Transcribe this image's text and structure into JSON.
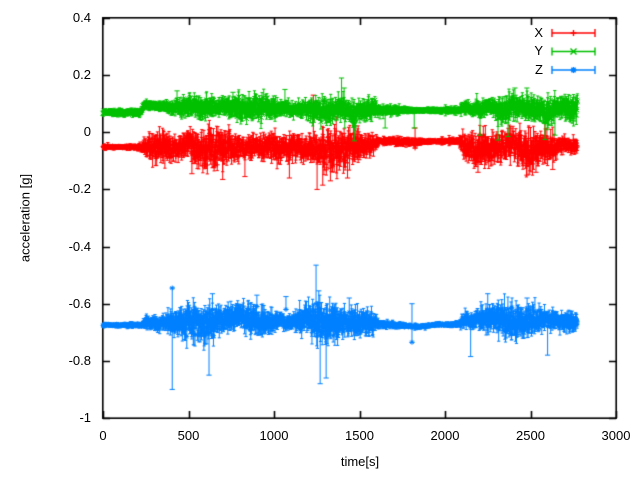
{
  "chart_data": {
    "type": "scatter",
    "style": "yerrorbars",
    "title": "",
    "xlabel": "time[s]",
    "ylabel": "acceleration [g]",
    "xlim": [
      0,
      3000
    ],
    "ylim": [
      -1,
      0.4
    ],
    "xticks": [
      0,
      500,
      1000,
      1500,
      2000,
      2500,
      3000
    ],
    "yticks": [
      0.4,
      0.2,
      0,
      -0.2,
      -0.4,
      -0.6,
      -0.8,
      -1
    ],
    "xtick_labels": [
      "0",
      "500",
      "1000",
      "1500",
      "2000",
      "2500",
      "3000"
    ],
    "ytick_labels": [
      "0.4",
      "0.2",
      "0",
      "-0.2",
      "-0.4",
      "-0.6",
      "-0.8",
      "-1"
    ],
    "grid": false,
    "legend_position": "inside-top-right",
    "background_color": "#ffffff",
    "axis_color": "#000000",
    "t_start": 0,
    "t_end": 2775,
    "sample_step_s": 2,
    "series": [
      {
        "name": "X",
        "color": "#ff0000",
        "marker": "plus",
        "envelope": [
          [
            0,
            -0.052,
            0.006,
            0.01
          ],
          [
            215,
            -0.052,
            0.006,
            0.01
          ],
          [
            245,
            -0.045,
            0.018,
            0.02
          ],
          [
            300,
            -0.05,
            0.026,
            0.026
          ],
          [
            420,
            -0.056,
            0.03,
            0.028
          ],
          [
            500,
            -0.046,
            0.03,
            0.028
          ],
          [
            600,
            -0.06,
            0.034,
            0.03
          ],
          [
            700,
            -0.052,
            0.034,
            0.03
          ],
          [
            800,
            -0.062,
            0.036,
            0.03
          ],
          [
            900,
            -0.046,
            0.03,
            0.028
          ],
          [
            1000,
            -0.055,
            0.032,
            0.028
          ],
          [
            1100,
            -0.05,
            0.034,
            0.03
          ],
          [
            1200,
            -0.062,
            0.04,
            0.033
          ],
          [
            1300,
            -0.07,
            0.044,
            0.036
          ],
          [
            1400,
            -0.055,
            0.034,
            0.03
          ],
          [
            1500,
            -0.048,
            0.03,
            0.028
          ],
          [
            1590,
            -0.042,
            0.022,
            0.022
          ],
          [
            1615,
            -0.03,
            0.005,
            0.01
          ],
          [
            1800,
            -0.034,
            0.006,
            0.011
          ],
          [
            2080,
            -0.03,
            0.005,
            0.01
          ],
          [
            2110,
            -0.048,
            0.024,
            0.024
          ],
          [
            2200,
            -0.06,
            0.034,
            0.03
          ],
          [
            2300,
            -0.052,
            0.034,
            0.03
          ],
          [
            2400,
            -0.048,
            0.03,
            0.028
          ],
          [
            2500,
            -0.06,
            0.034,
            0.03
          ],
          [
            2600,
            -0.05,
            0.03,
            0.028
          ],
          [
            2700,
            -0.046,
            0.028,
            0.026
          ],
          [
            2775,
            -0.05,
            0.024,
            0.024
          ]
        ],
        "spikes": [
          [
            520,
            -0.145,
            -0.05
          ],
          [
            700,
            -0.165,
            -0.08
          ],
          [
            830,
            -0.155,
            -0.07
          ],
          [
            1090,
            -0.16,
            -0.07
          ],
          [
            1230,
            -0.02,
            0.13
          ],
          [
            1252,
            -0.2,
            -0.06
          ],
          [
            1285,
            -0.185,
            -0.05
          ],
          [
            1330,
            -0.17,
            -0.06
          ],
          [
            1430,
            -0.16,
            -0.05
          ],
          [
            1825,
            -0.055,
            0.015
          ],
          [
            2193,
            -0.14,
            -0.05
          ],
          [
            2479,
            -0.15,
            -0.05
          ],
          [
            2532,
            -0.14,
            -0.06
          ],
          [
            2630,
            -0.13,
            -0.05
          ]
        ]
      },
      {
        "name": "Y",
        "color": "#00c000",
        "marker": "cross",
        "envelope": [
          [
            0,
            0.069,
            0.005,
            0.009
          ],
          [
            215,
            0.069,
            0.005,
            0.009
          ],
          [
            245,
            0.096,
            0.012,
            0.014
          ],
          [
            330,
            0.092,
            0.016,
            0.018
          ],
          [
            430,
            0.086,
            0.02,
            0.02
          ],
          [
            500,
            0.09,
            0.021,
            0.021
          ],
          [
            600,
            0.086,
            0.021,
            0.021
          ],
          [
            700,
            0.09,
            0.02,
            0.021
          ],
          [
            800,
            0.085,
            0.022,
            0.022
          ],
          [
            900,
            0.088,
            0.02,
            0.021
          ],
          [
            1000,
            0.084,
            0.022,
            0.022
          ],
          [
            1100,
            0.082,
            0.022,
            0.022
          ],
          [
            1200,
            0.079,
            0.024,
            0.024
          ],
          [
            1300,
            0.074,
            0.027,
            0.026
          ],
          [
            1400,
            0.084,
            0.024,
            0.024
          ],
          [
            1470,
            0.062,
            0.032,
            0.028
          ],
          [
            1510,
            0.08,
            0.021,
            0.022
          ],
          [
            1590,
            0.084,
            0.016,
            0.018
          ],
          [
            1615,
            0.077,
            0.004,
            0.009
          ],
          [
            2080,
            0.077,
            0.004,
            0.009
          ],
          [
            2110,
            0.088,
            0.016,
            0.018
          ],
          [
            2200,
            0.076,
            0.028,
            0.026
          ],
          [
            2260,
            0.09,
            0.021,
            0.022
          ],
          [
            2350,
            0.072,
            0.028,
            0.026
          ],
          [
            2420,
            0.09,
            0.019,
            0.02
          ],
          [
            2550,
            0.084,
            0.024,
            0.024
          ],
          [
            2600,
            0.068,
            0.03,
            0.028
          ],
          [
            2660,
            0.09,
            0.021,
            0.022
          ],
          [
            2775,
            0.082,
            0.022,
            0.022
          ]
        ],
        "spikes": [
          [
            433,
            0.1,
            0.145
          ],
          [
            760,
            0.1,
            0.14
          ],
          [
            1064,
            0.1,
            0.15
          ],
          [
            1395,
            0.11,
            0.19
          ],
          [
            1410,
            0.1,
            0.155
          ],
          [
            1470,
            -0.03,
            0.03
          ],
          [
            1650,
            0.015,
            0.07
          ],
          [
            1820,
            0.015,
            0.08
          ],
          [
            2205,
            -0.01,
            0.06
          ],
          [
            2310,
            -0.027,
            0.05
          ],
          [
            2369,
            -0.015,
            0.05
          ],
          [
            2409,
            0.1,
            0.155
          ],
          [
            2479,
            0.1,
            0.155
          ],
          [
            2585,
            -0.025,
            0.05
          ],
          [
            2643,
            -0.01,
            0.06
          ]
        ]
      },
      {
        "name": "Z",
        "color": "#0080ff",
        "marker": "asterisk",
        "envelope": [
          [
            0,
            -0.675,
            0.004,
            0.007
          ],
          [
            225,
            -0.675,
            0.004,
            0.007
          ],
          [
            255,
            -0.664,
            0.014,
            0.016
          ],
          [
            300,
            -0.67,
            0.02,
            0.022
          ],
          [
            400,
            -0.668,
            0.024,
            0.024
          ],
          [
            500,
            -0.664,
            0.026,
            0.026
          ],
          [
            600,
            -0.672,
            0.028,
            0.028
          ],
          [
            700,
            -0.664,
            0.03,
            0.028
          ],
          [
            790,
            -0.642,
            0.028,
            0.028
          ],
          [
            850,
            -0.65,
            0.03,
            0.028
          ],
          [
            900,
            -0.664,
            0.027,
            0.026
          ],
          [
            1000,
            -0.66,
            0.028,
            0.026
          ],
          [
            1100,
            -0.664,
            0.028,
            0.028
          ],
          [
            1200,
            -0.655,
            0.032,
            0.03
          ],
          [
            1300,
            -0.668,
            0.036,
            0.032
          ],
          [
            1400,
            -0.663,
            0.028,
            0.028
          ],
          [
            1500,
            -0.668,
            0.026,
            0.026
          ],
          [
            1585,
            -0.667,
            0.018,
            0.02
          ],
          [
            1615,
            -0.672,
            0.004,
            0.007
          ],
          [
            1740,
            -0.676,
            0.005,
            0.008
          ],
          [
            1860,
            -0.68,
            0.006,
            0.009
          ],
          [
            1960,
            -0.673,
            0.004,
            0.007
          ],
          [
            2080,
            -0.672,
            0.004,
            0.007
          ],
          [
            2110,
            -0.66,
            0.018,
            0.02
          ],
          [
            2200,
            -0.656,
            0.026,
            0.026
          ],
          [
            2300,
            -0.646,
            0.028,
            0.028
          ],
          [
            2400,
            -0.664,
            0.026,
            0.026
          ],
          [
            2500,
            -0.658,
            0.028,
            0.026
          ],
          [
            2600,
            -0.654,
            0.026,
            0.025
          ],
          [
            2700,
            -0.664,
            0.026,
            0.025
          ],
          [
            2775,
            -0.668,
            0.016,
            0.018
          ]
        ],
        "spikes": [
          [
            405,
            -0.9,
            -0.545
          ],
          [
            620,
            -0.85,
            -0.7
          ],
          [
            640,
            -0.62,
            -0.565
          ],
          [
            900,
            -0.61,
            -0.57
          ],
          [
            1070,
            -0.62,
            -0.575
          ],
          [
            1246,
            -0.6,
            -0.465
          ],
          [
            1262,
            -0.62,
            -0.555
          ],
          [
            1270,
            -0.88,
            -0.7
          ],
          [
            1305,
            -0.86,
            -0.72
          ],
          [
            1440,
            -0.63,
            -0.58
          ],
          [
            1807,
            -0.735,
            -0.6
          ],
          [
            2150,
            -0.785,
            -0.68
          ],
          [
            2250,
            -0.62,
            -0.565
          ],
          [
            2480,
            -0.625,
            -0.58
          ],
          [
            2600,
            -0.78,
            -0.68
          ]
        ]
      }
    ]
  }
}
